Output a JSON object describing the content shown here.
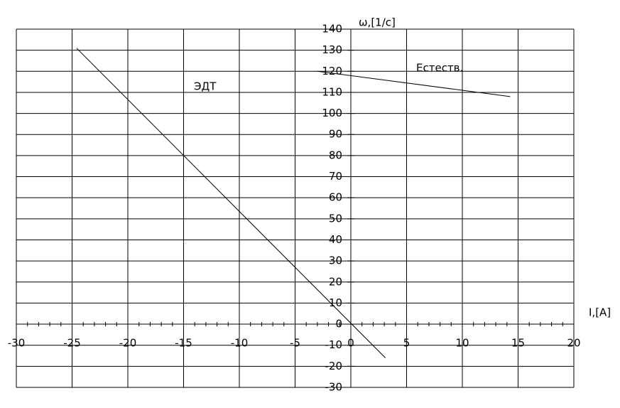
{
  "chart_data": {
    "type": "line",
    "x_label": "I,[A]",
    "y_label": "ω,[1/c]",
    "xlim": [
      -30,
      20
    ],
    "ylim": [
      -30,
      140
    ],
    "xticks": [
      -30,
      -25,
      -20,
      -15,
      -10,
      -5,
      0,
      5,
      10,
      15,
      20
    ],
    "yticks": [
      -30,
      -20,
      -10,
      0,
      10,
      20,
      30,
      40,
      50,
      60,
      70,
      80,
      90,
      100,
      110,
      120,
      130,
      140
    ],
    "grid": true,
    "series": [
      {
        "name": "ЭДТ",
        "color": "#000000",
        "x": [
          -24.6,
          3.1
        ],
        "values": [
          131,
          -16
        ]
      },
      {
        "name": "Естеств.",
        "color": "#000000",
        "x": [
          -3,
          14.3
        ],
        "values": [
          120,
          108
        ]
      }
    ]
  }
}
